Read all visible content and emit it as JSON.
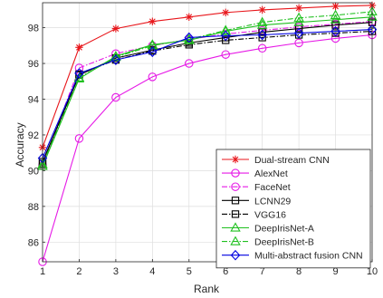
{
  "chart_data": {
    "type": "line",
    "title": "",
    "xlabel": "Rank",
    "ylabel": "Accuracy",
    "x": [
      1,
      2,
      3,
      4,
      5,
      6,
      7,
      8,
      9,
      10
    ],
    "xlim": [
      1,
      10
    ],
    "ylim": [
      84.9,
      99.4
    ],
    "xticks": [
      1,
      2,
      3,
      4,
      5,
      6,
      7,
      8,
      9,
      10
    ],
    "yticks": [
      86,
      88,
      90,
      92,
      94,
      96,
      98
    ],
    "grid": true,
    "legend_position": "bottom-right",
    "series": [
      {
        "name": "Dual-stream CNN",
        "color": "#e8161b",
        "marker": "star",
        "dash": "solid",
        "values": [
          91.3,
          96.9,
          97.95,
          98.35,
          98.6,
          98.85,
          99.0,
          99.1,
          99.2,
          99.25
        ]
      },
      {
        "name": "AlexNet",
        "color": "#e619e6",
        "marker": "circle",
        "dash": "solid",
        "values": [
          84.9,
          91.8,
          94.1,
          95.25,
          96.0,
          96.5,
          96.85,
          97.15,
          97.4,
          97.6
        ]
      },
      {
        "name": "FaceNet",
        "color": "#e619e6",
        "marker": "circle",
        "dash": "dashdot",
        "values": [
          90.3,
          95.75,
          96.55,
          97.0,
          97.35,
          97.65,
          97.85,
          98.05,
          98.2,
          98.35
        ]
      },
      {
        "name": "LCNN29",
        "color": "#000000",
        "marker": "square",
        "dash": "solid",
        "values": [
          90.5,
          95.35,
          96.3,
          96.75,
          97.15,
          97.45,
          97.75,
          97.95,
          98.15,
          98.3
        ]
      },
      {
        "name": "VGG16",
        "color": "#000000",
        "marker": "square",
        "dash": "dashdot",
        "values": [
          90.4,
          95.4,
          96.2,
          96.7,
          97.05,
          97.3,
          97.45,
          97.6,
          97.7,
          97.8
        ]
      },
      {
        "name": "DeepIrisNet-A",
        "color": "#20c020",
        "marker": "triangle",
        "dash": "solid",
        "values": [
          90.25,
          95.15,
          96.4,
          97.05,
          97.3,
          97.8,
          98.15,
          98.3,
          98.45,
          98.6
        ]
      },
      {
        "name": "DeepIrisNet-B",
        "color": "#20c020",
        "marker": "triangle",
        "dash": "dashdot",
        "values": [
          90.35,
          95.2,
          96.35,
          97.0,
          97.35,
          97.85,
          98.3,
          98.55,
          98.7,
          98.9
        ]
      },
      {
        "name": "Multi-abstract fusion CNN",
        "color": "#0000e0",
        "marker": "diamond",
        "dash": "solid",
        "values": [
          90.7,
          95.45,
          96.2,
          96.65,
          97.45,
          97.55,
          97.6,
          97.7,
          97.8,
          97.9
        ]
      }
    ]
  }
}
